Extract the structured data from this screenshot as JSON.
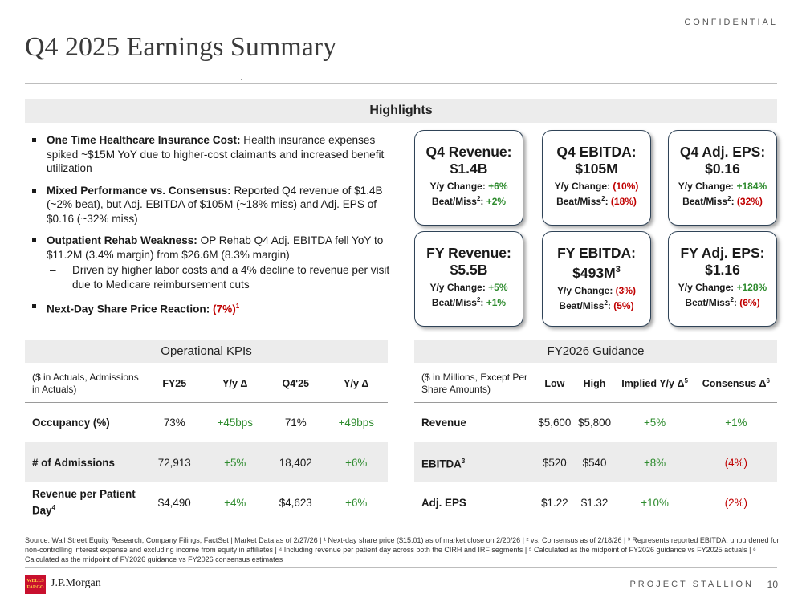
{
  "header": {
    "confidential": "CONFIDENTIAL",
    "title": "Q4 2025 Earnings Summary"
  },
  "highlights": {
    "title": "Highlights",
    "bullets": [
      {
        "bold": "One Time Healthcare Insurance Cost:",
        "text": " Health insurance expenses spiked ~$15M YoY due to higher-cost claimants and increased benefit utilization"
      },
      {
        "bold": "Mixed Performance vs. Consensus:",
        "text": " Reported Q4 revenue of $1.4B (~2% beat), but Adj. EBITDA of $105M (~18% miss) and Adj. EPS of $0.16 (~32% miss)"
      },
      {
        "bold": "Outpatient Rehab Weakness:",
        "text": " OP Rehab Q4 Adj. EBITDA fell YoY to $11.2M (3.4% margin) from $26.6M (8.3% margin)"
      },
      {
        "bold": "Next-Day Share Price Reaction:",
        "text": ""
      }
    ],
    "sub_bullet_dash": "–",
    "sub_bullet": "Driven by higher labor costs and a 4% decline to revenue per visit due to Medicare reimbursement cuts",
    "reaction_value": "(7%)",
    "reaction_footnote": "1"
  },
  "cards": [
    {
      "title": "Q4 Revenue:",
      "value": "$1.4B",
      "value_sup": "",
      "yoy_label": "Y/y Change: ",
      "yoy": "+6%",
      "yoy_color": "green",
      "beat_label": "Beat/Miss",
      "beat_sup": "2",
      "beat_colon": ": ",
      "beat": "+2%",
      "beat_color": "green"
    },
    {
      "title": "Q4 EBITDA:",
      "value": "$105M",
      "value_sup": "",
      "yoy_label": "Y/y Change: ",
      "yoy": "(10%)",
      "yoy_color": "red",
      "beat_label": "Beat/Miss",
      "beat_sup": "2",
      "beat_colon": ": ",
      "beat": "(18%)",
      "beat_color": "red"
    },
    {
      "title": "Q4 Adj. EPS:",
      "value": "$0.16",
      "value_sup": "",
      "yoy_label": "Y/y Change: ",
      "yoy": "+184%",
      "yoy_color": "green",
      "beat_label": "Beat/Miss",
      "beat_sup": "2",
      "beat_colon": ": ",
      "beat": "(32%)",
      "beat_color": "red"
    },
    {
      "title": "FY Revenue:",
      "value": "$5.5B",
      "value_sup": "",
      "yoy_label": "Y/y Change: ",
      "yoy": "+5%",
      "yoy_color": "green",
      "beat_label": "Beat/Miss",
      "beat_sup": "2",
      "beat_colon": ": ",
      "beat": "+1%",
      "beat_color": "green"
    },
    {
      "title": "FY EBITDA:",
      "value": "$493M",
      "value_sup": "3",
      "yoy_label": "Y/y Change: ",
      "yoy": "(3%)",
      "yoy_color": "red",
      "beat_label": "Beat/Miss",
      "beat_sup": "2",
      "beat_colon": ": ",
      "beat": "(5%)",
      "beat_color": "red"
    },
    {
      "title": "FY Adj. EPS:",
      "value": "$1.16",
      "value_sup": "",
      "yoy_label": "Y/y Change: ",
      "yoy": "+128%",
      "yoy_color": "green",
      "beat_label": "Beat/Miss",
      "beat_sup": "2",
      "beat_colon": ": ",
      "beat": "(6%)",
      "beat_color": "red"
    }
  ],
  "kpis": {
    "title": "Operational KPIs",
    "headers": [
      "($ in Actuals, Admissions in Actuals)",
      "FY25",
      "Y/y Δ",
      "Q4'25",
      "Y/y Δ"
    ],
    "rows": [
      {
        "label": "Occupancy (%)",
        "label_sup": "",
        "fy25": "73%",
        "fy25_yoy": "+45bps",
        "q4": "71%",
        "q4_yoy": "+49bps"
      },
      {
        "label": "# of Admissions",
        "label_sup": "",
        "fy25": "72,913",
        "fy25_yoy": "+5%",
        "q4": "18,402",
        "q4_yoy": "+6%"
      },
      {
        "label": "Revenue per Patient Day",
        "label_sup": "4",
        "fy25": "$4,490",
        "fy25_yoy": "+4%",
        "q4": "$4,623",
        "q4_yoy": "+6%"
      }
    ]
  },
  "guidance": {
    "title": "FY2026 Guidance",
    "headers": [
      "($ in Millions, Except Per Share Amounts)",
      "Low",
      "High",
      "Implied Y/y Δ",
      "Consensus Δ"
    ],
    "header_sups": [
      "",
      "",
      "",
      "5",
      "6"
    ],
    "rows": [
      {
        "label": "Revenue",
        "label_sup": "",
        "low": "$5,600",
        "high": "$5,800",
        "implied": "+5%",
        "implied_color": "green",
        "consensus": "+1%",
        "consensus_color": "green"
      },
      {
        "label": "EBITDA",
        "label_sup": "3",
        "low": "$520",
        "high": "$540",
        "implied": "+8%",
        "implied_color": "green",
        "consensus": "(4%)",
        "consensus_color": "red"
      },
      {
        "label": "Adj. EPS",
        "label_sup": "",
        "low": "$1.22",
        "high": "$1.32",
        "implied": "+10%",
        "implied_color": "green",
        "consensus": "(2%)",
        "consensus_color": "red"
      }
    ]
  },
  "source_note": "Source: Wall Street Equity Research, Company Filings, FactSet | Market Data as of 2/27/26 | ¹ Next-day share price ($15.01) as of market close on 2/20/26 | ² vs. Consensus as of 2/18/26 | ³ Represents reported EBITDA, unburdened for non-controlling interest expense and excluding income from equity in affiliates | ⁴ Including revenue per patient day across both the CIRH and IRF segments | ⁵ Calculated as the midpoint of FY2026 guidance vs FY2025 actuals | ⁶ Calculated as the midpoint of FY2026 guidance vs FY2026 consensus estimates",
  "footer": {
    "wf_logo": "WELLS FARGO",
    "jpm": "J.P.Morgan",
    "project": "PROJECT STALLION",
    "page": "10"
  },
  "colors": {
    "green": "#2e8b2e",
    "red": "#c00000",
    "card_border": "#2f4357"
  }
}
